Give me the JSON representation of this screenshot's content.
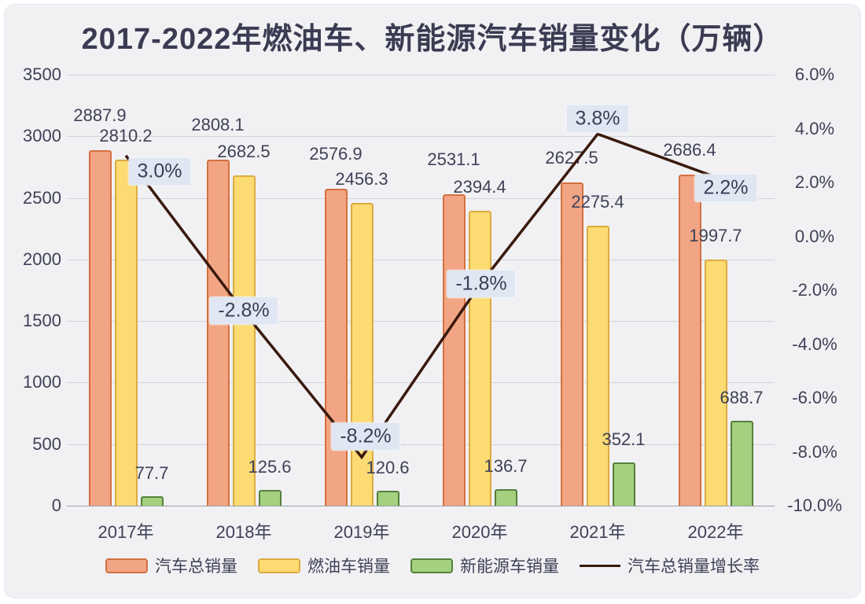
{
  "chart_data": {
    "type": "bar+line",
    "title": "2017-2022年燃油车、新能源汽车销量变化（万辆）",
    "categories": [
      "2017年",
      "2018年",
      "2019年",
      "2020年",
      "2021年",
      "2022年"
    ],
    "series": [
      {
        "name": "汽车总销量",
        "type": "bar",
        "color": "#f2a584",
        "border_color": "#d4703f",
        "values": [
          2887.9,
          2808.1,
          2576.9,
          2531.1,
          2627.5,
          2686.4
        ]
      },
      {
        "name": "燃油车销量",
        "type": "bar",
        "color": "#fbdb72",
        "border_color": "#ddab41",
        "values": [
          2810.2,
          2682.5,
          2456.3,
          2394.4,
          2275.4,
          1997.7
        ]
      },
      {
        "name": "新能源车销量",
        "type": "bar",
        "color": "#a4d07f",
        "border_color": "#55803b",
        "values": [
          77.7,
          125.6,
          120.6,
          136.7,
          352.1,
          688.7
        ]
      }
    ],
    "line_series": {
      "name": "汽车总销量增长率",
      "type": "line",
      "color": "#3a1a0d",
      "unit": "%",
      "values": [
        3.0,
        -2.8,
        -8.2,
        -1.8,
        3.8,
        2.2
      ],
      "point_labels": [
        "3.0%",
        "-2.8%",
        "-8.2%",
        "-1.8%",
        "3.8%",
        "2.2%"
      ]
    },
    "left_axis": {
      "min": 0,
      "max": 3500,
      "ticks": [
        "3500",
        "3000",
        "2500",
        "2000",
        "1500",
        "1000",
        "500",
        "0"
      ]
    },
    "right_axis": {
      "min": -10,
      "max": 6,
      "ticks": [
        "6.0%",
        "4.0%",
        "2.0%",
        "0.0%",
        "-2.0%",
        "-4.0%",
        "-6.0%",
        "-8.0%",
        "-10.0%"
      ]
    },
    "grid": true,
    "legend_position": "bottom"
  },
  "style": {
    "panel_bg": "#f1f1f4",
    "text_color": "#3f4156",
    "grid_color": "#d3d4da",
    "axis_line_color": "#9aa0aa",
    "pct_label_bg": "#e0e7f2"
  }
}
